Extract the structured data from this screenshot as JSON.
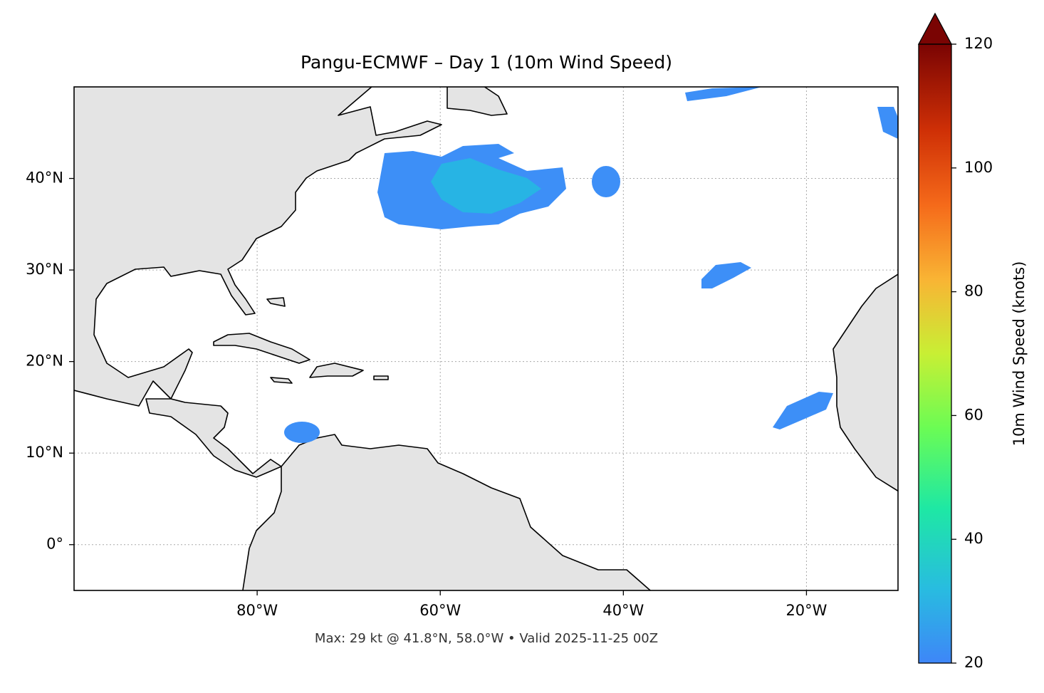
{
  "chart_data": {
    "type": "map",
    "title": "Pangu-ECMWF – Day 1 (10m Wind Speed)",
    "footer": "Max: 29 kt @ 41.8°N, 58.0°W • Valid 2025-11-25 00Z",
    "xlim": [
      -100,
      -10
    ],
    "ylim": [
      -5,
      50
    ],
    "xticks": [
      {
        "value": -80,
        "label": "80°W"
      },
      {
        "value": -60,
        "label": "60°W"
      },
      {
        "value": -40,
        "label": "40°W"
      },
      {
        "value": -20,
        "label": "20°W"
      }
    ],
    "yticks": [
      {
        "value": 0,
        "label": "0°"
      },
      {
        "value": 10,
        "label": "10°N"
      },
      {
        "value": 20,
        "label": "20°N"
      },
      {
        "value": 30,
        "label": "30°N"
      },
      {
        "value": 40,
        "label": "40°N"
      }
    ],
    "grid": true,
    "colorbar": {
      "label": "10m Wind Speed (knots)",
      "lim": [
        20,
        120
      ],
      "ticks": [
        20,
        40,
        60,
        80,
        100,
        120
      ],
      "extend": "max"
    }
  }
}
